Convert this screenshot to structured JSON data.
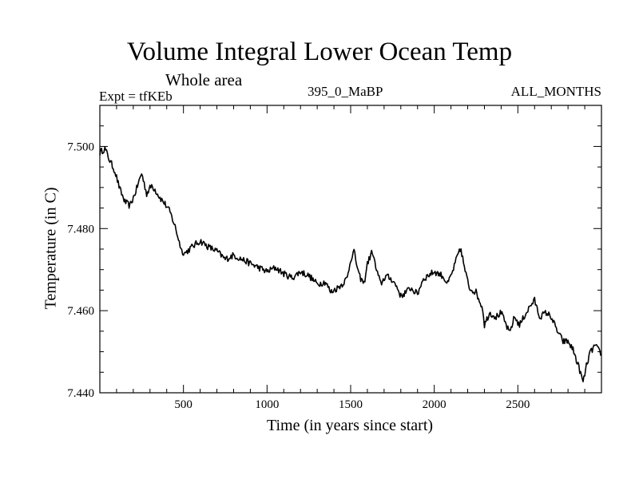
{
  "chart_data": {
    "type": "line",
    "title": "Volume Integral Lower Ocean Temp",
    "subtitle": "Whole area",
    "annotations": {
      "experiment": "Expt = tfKEb",
      "run": "395_0_MaBP",
      "months": "ALL_MONTHS"
    },
    "xlabel": "Time (in years since start)",
    "ylabel": "Temperature (in C)",
    "xlim": [
      0,
      3000
    ],
    "ylim": [
      7.44,
      7.51
    ],
    "xticks": [
      500,
      1000,
      1500,
      2000,
      2500
    ],
    "xtick_labels": [
      "500",
      "1000",
      "1500",
      "2000",
      "2500"
    ],
    "yticks": [
      7.44,
      7.46,
      7.48,
      7.5
    ],
    "ytick_labels": [
      "7.440",
      "7.460",
      "7.480",
      "7.500"
    ],
    "grid": false,
    "series": [
      {
        "x": [
          0,
          30,
          60,
          90,
          120,
          150,
          180,
          210,
          250,
          280,
          310,
          330,
          360,
          390,
          420,
          450,
          470,
          490,
          510,
          550,
          600,
          650,
          700,
          750,
          800,
          850,
          900,
          950,
          1000,
          1050,
          1100,
          1150,
          1200,
          1250,
          1300,
          1350,
          1380,
          1420,
          1450,
          1480,
          1500,
          1520,
          1550,
          1580,
          1600,
          1630,
          1650,
          1680,
          1710,
          1750,
          1780,
          1800,
          1830,
          1860,
          1900,
          1930,
          1960,
          2000,
          2050,
          2080,
          2110,
          2140,
          2160,
          2180,
          2210,
          2250,
          2290,
          2300,
          2330,
          2370,
          2400,
          2450,
          2480,
          2510,
          2550,
          2580,
          2600,
          2630,
          2670,
          2700,
          2730,
          2770,
          2800,
          2830,
          2870,
          2890,
          2910,
          2930,
          2960,
          3000
        ],
        "y": [
          7.4985,
          7.4995,
          7.4965,
          7.494,
          7.4895,
          7.4865,
          7.4855,
          7.4885,
          7.4935,
          7.4885,
          7.4905,
          7.4895,
          7.4875,
          7.486,
          7.484,
          7.4805,
          7.4775,
          7.4745,
          7.474,
          7.4755,
          7.477,
          7.4755,
          7.4745,
          7.4725,
          7.4735,
          7.4725,
          7.4715,
          7.4705,
          7.4695,
          7.4705,
          7.469,
          7.468,
          7.4695,
          7.4685,
          7.4665,
          7.467,
          7.4645,
          7.4655,
          7.4665,
          7.468,
          7.4725,
          7.4745,
          7.4685,
          7.4665,
          7.4715,
          7.4745,
          7.4705,
          7.4665,
          7.4685,
          7.4675,
          7.4655,
          7.4635,
          7.4645,
          7.4655,
          7.464,
          7.4675,
          7.4685,
          7.4695,
          7.4685,
          7.4665,
          7.4695,
          7.4735,
          7.475,
          7.4705,
          7.4655,
          7.4645,
          7.4605,
          7.4565,
          7.4595,
          7.4585,
          7.4595,
          7.4545,
          7.4585,
          7.4565,
          7.4595,
          7.4615,
          7.4625,
          7.4585,
          7.4595,
          7.4585,
          7.4555,
          7.4525,
          7.4525,
          7.4505,
          7.4455,
          7.4425,
          7.4465,
          7.4495,
          7.4515,
          7.4495
        ]
      }
    ]
  },
  "colors": {
    "line": "#000000",
    "frame": "#000000",
    "background": "#ffffff"
  }
}
